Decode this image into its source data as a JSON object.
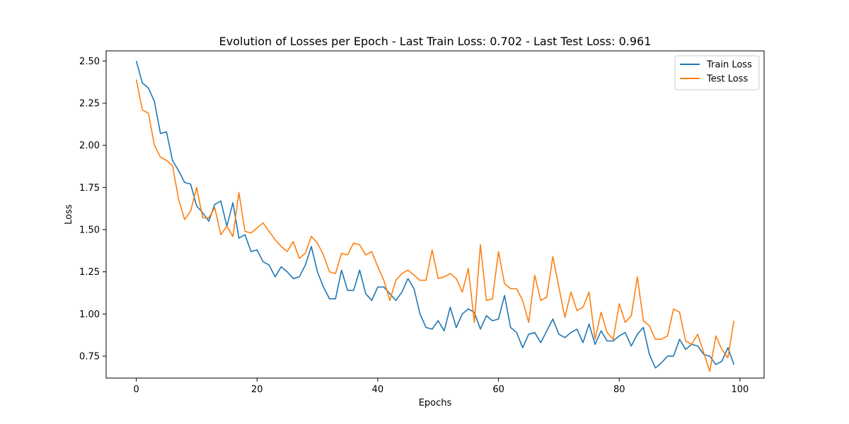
{
  "chart_data": {
    "type": "line",
    "title": "Evolution of Losses per Epoch - Last Train Loss: 0.702 - Last Test Loss: 0.961",
    "xlabel": "Epochs",
    "ylabel": "Loss",
    "xlim": [
      -5.0,
      104.0
    ],
    "ylim": [
      0.62,
      2.56
    ],
    "xticks": [
      0,
      20,
      40,
      60,
      80,
      100
    ],
    "yticks": [
      0.75,
      1.0,
      1.25,
      1.5,
      1.75,
      2.0,
      2.25,
      2.5
    ],
    "xtick_labels": [
      "0",
      "20",
      "40",
      "60",
      "80",
      "100"
    ],
    "ytick_labels": [
      "0.75",
      "1.00",
      "1.25",
      "1.50",
      "1.75",
      "2.00",
      "2.25",
      "2.50"
    ],
    "grid": false,
    "legend": {
      "placement": "upper-right"
    },
    "series": [
      {
        "name": "Train Loss",
        "color": "#1f77b4",
        "values": [
          2.5,
          2.37,
          2.34,
          2.26,
          2.07,
          2.08,
          1.91,
          1.85,
          1.78,
          1.77,
          1.64,
          1.6,
          1.55,
          1.65,
          1.67,
          1.52,
          1.66,
          1.45,
          1.47,
          1.37,
          1.38,
          1.31,
          1.29,
          1.22,
          1.28,
          1.25,
          1.21,
          1.22,
          1.29,
          1.4,
          1.25,
          1.16,
          1.09,
          1.09,
          1.26,
          1.14,
          1.14,
          1.26,
          1.12,
          1.08,
          1.16,
          1.16,
          1.12,
          1.08,
          1.13,
          1.21,
          1.15,
          1.0,
          0.92,
          0.91,
          0.96,
          0.9,
          1.04,
          0.92,
          1.0,
          1.03,
          1.01,
          0.91,
          0.99,
          0.96,
          0.97,
          1.11,
          0.92,
          0.89,
          0.8,
          0.88,
          0.89,
          0.83,
          0.9,
          0.97,
          0.88,
          0.86,
          0.89,
          0.91,
          0.83,
          0.94,
          0.82,
          0.9,
          0.84,
          0.84,
          0.87,
          0.89,
          0.81,
          0.88,
          0.92,
          0.76,
          0.68,
          0.71,
          0.75,
          0.75,
          0.85,
          0.79,
          0.82,
          0.81,
          0.76,
          0.75,
          0.7,
          0.72,
          0.8,
          0.7
        ]
      },
      {
        "name": "Test Loss",
        "color": "#ff7f0e",
        "values": [
          2.39,
          2.21,
          2.19,
          2.0,
          1.93,
          1.91,
          1.88,
          1.68,
          1.56,
          1.61,
          1.75,
          1.57,
          1.57,
          1.63,
          1.47,
          1.52,
          1.46,
          1.72,
          1.49,
          1.48,
          1.51,
          1.54,
          1.49,
          1.44,
          1.4,
          1.37,
          1.43,
          1.33,
          1.36,
          1.46,
          1.42,
          1.35,
          1.25,
          1.24,
          1.36,
          1.35,
          1.42,
          1.41,
          1.35,
          1.37,
          1.28,
          1.2,
          1.08,
          1.2,
          1.24,
          1.26,
          1.23,
          1.2,
          1.2,
          1.38,
          1.21,
          1.22,
          1.24,
          1.21,
          1.13,
          1.27,
          0.95,
          1.41,
          1.08,
          1.09,
          1.37,
          1.18,
          1.15,
          1.15,
          1.08,
          0.95,
          1.23,
          1.08,
          1.1,
          1.34,
          1.16,
          0.98,
          1.13,
          1.02,
          1.04,
          1.13,
          0.85,
          1.01,
          0.89,
          0.85,
          1.06,
          0.95,
          0.99,
          1.22,
          0.96,
          0.93,
          0.85,
          0.85,
          0.87,
          1.03,
          1.01,
          0.84,
          0.82,
          0.88,
          0.77,
          0.66,
          0.87,
          0.79,
          0.74,
          0.96
        ]
      }
    ]
  }
}
